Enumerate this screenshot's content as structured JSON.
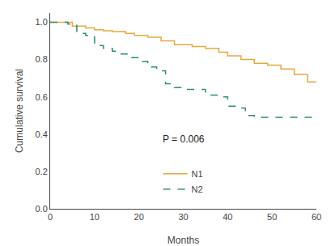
{
  "chart_data": {
    "type": "step",
    "xlabel": "Months",
    "ylabel": "Cumulative survival",
    "series": [
      {
        "name": "N1",
        "color": "#E8A840",
        "line_style": "solid",
        "x": [
          0,
          5,
          5,
          8,
          8,
          10,
          10,
          12,
          12,
          14,
          14,
          17,
          17,
          19,
          19,
          22,
          22,
          25,
          25,
          28,
          28,
          32,
          32,
          35,
          35,
          38,
          38,
          40,
          40,
          43,
          43,
          46,
          46,
          49,
          49,
          52,
          52,
          55,
          55,
          58,
          58,
          60
        ],
        "values": [
          1.0,
          1.0,
          0.98,
          0.98,
          0.97,
          0.97,
          0.96,
          0.96,
          0.955,
          0.955,
          0.95,
          0.95,
          0.94,
          0.94,
          0.93,
          0.93,
          0.92,
          0.92,
          0.9,
          0.9,
          0.88,
          0.88,
          0.87,
          0.87,
          0.86,
          0.86,
          0.84,
          0.84,
          0.82,
          0.82,
          0.8,
          0.8,
          0.78,
          0.78,
          0.77,
          0.77,
          0.75,
          0.75,
          0.72,
          0.72,
          0.68,
          0.68
        ]
      },
      {
        "name": "N2",
        "color": "#2D8B7A",
        "line_style": "dashed",
        "x": [
          0,
          4,
          4,
          6,
          6,
          8,
          8,
          10,
          10,
          12,
          12,
          14,
          14,
          16,
          16,
          18,
          18,
          20,
          20,
          22,
          22,
          24,
          24,
          26,
          26,
          28,
          28,
          30,
          30,
          35,
          35,
          38,
          38,
          40,
          40,
          42,
          42,
          44,
          44,
          46,
          46,
          48,
          48,
          50,
          50,
          60
        ],
        "values": [
          1.0,
          1.0,
          0.99,
          0.99,
          0.94,
          0.94,
          0.93,
          0.93,
          0.875,
          0.875,
          0.86,
          0.86,
          0.845,
          0.845,
          0.83,
          0.83,
          0.81,
          0.81,
          0.79,
          0.79,
          0.76,
          0.76,
          0.74,
          0.74,
          0.67,
          0.67,
          0.65,
          0.65,
          0.64,
          0.64,
          0.61,
          0.61,
          0.6,
          0.6,
          0.55,
          0.55,
          0.54,
          0.54,
          0.5,
          0.5,
          0.49,
          0.49,
          0.49,
          0.49,
          0.49,
          0.49
        ]
      }
    ],
    "xlim": [
      0,
      60
    ],
    "ylim": [
      0.0,
      1.05
    ],
    "xticks": [
      0,
      10,
      20,
      30,
      40,
      50,
      60
    ],
    "yticks": [
      {
        "value": 0,
        "label": "0.0"
      },
      0.2,
      0.4,
      0.6,
      0.8,
      {
        "value": 1,
        "label": "1.0"
      }
    ],
    "annotations": [
      {
        "text": "P = 0.006"
      }
    ],
    "legend": "lower center",
    "grid": false
  }
}
